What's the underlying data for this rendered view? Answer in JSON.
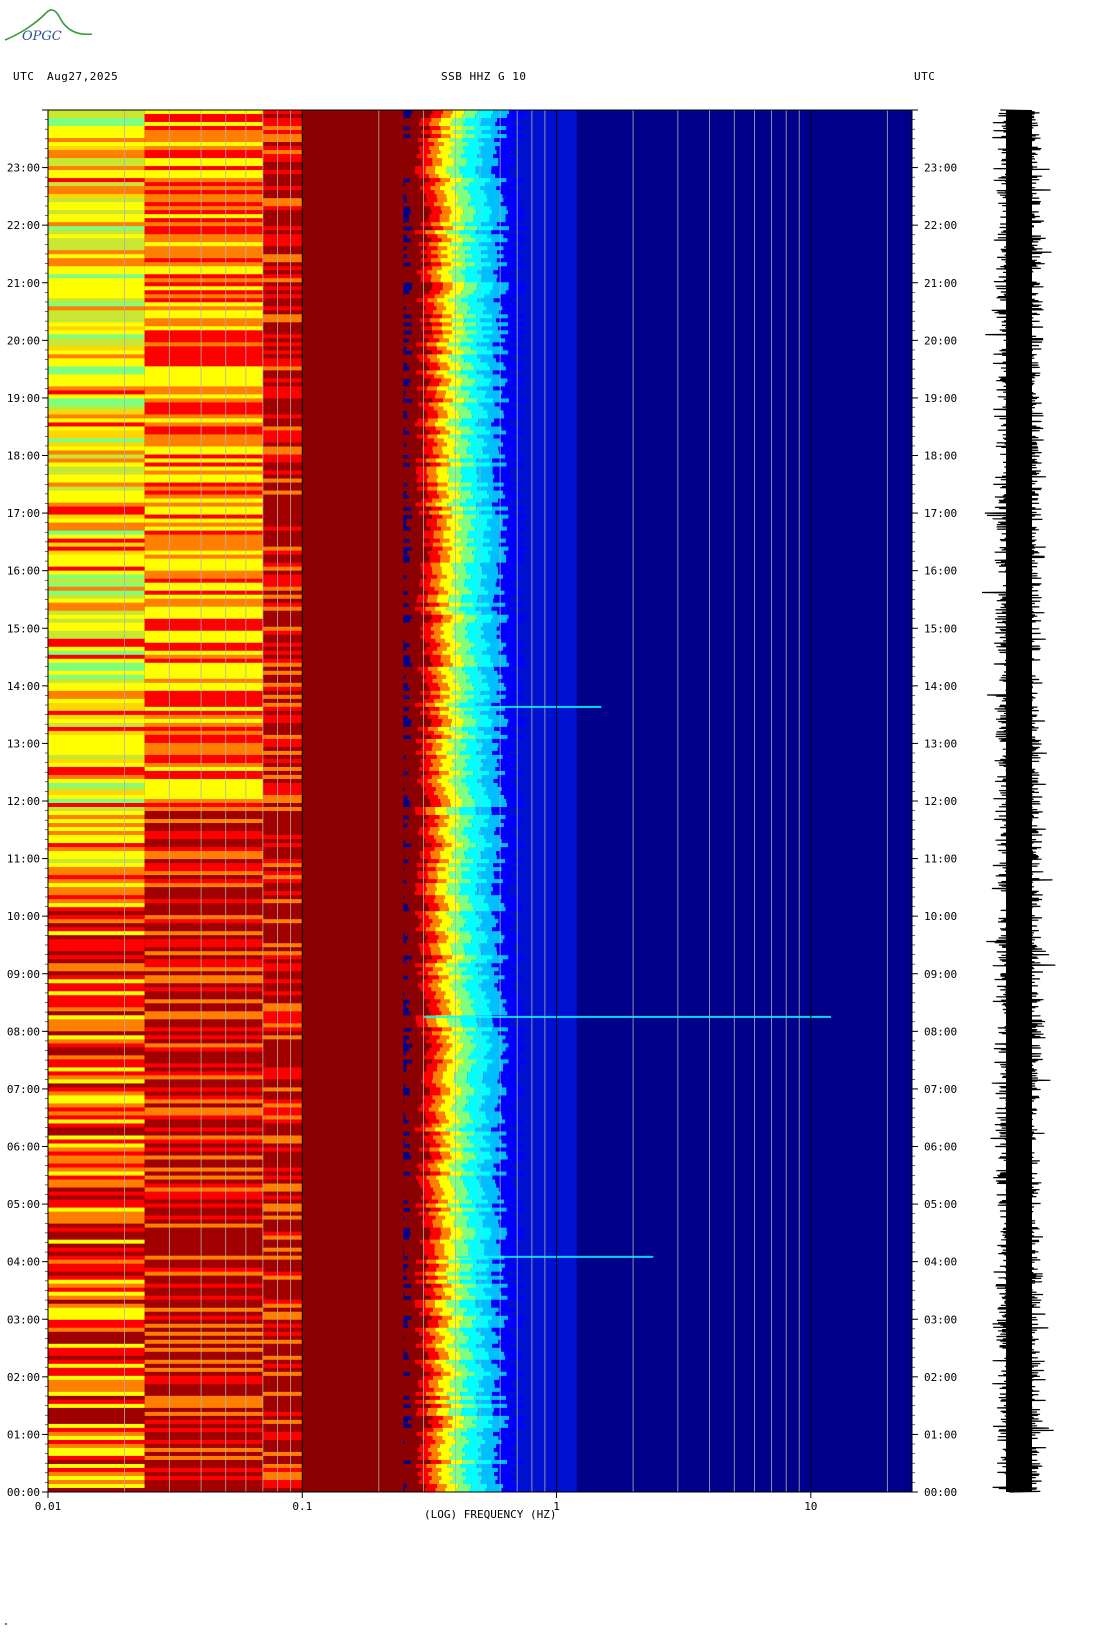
{
  "logo": {
    "text": "OPGC",
    "icon": "opgc-logo-icon"
  },
  "header": {
    "left_tz": "UTC",
    "date": "Aug27,2025",
    "station": "SSB HHZ G 10",
    "right_tz": "UTC"
  },
  "chart_data": {
    "type": "heatmap",
    "title": "SSB HHZ G 10",
    "subtitle": "Aug27,2025",
    "xlabel": "(LOG) FREQUENCY (HZ)",
    "ylabel": "UTC",
    "x_scale": "log",
    "xlim": [
      0.01,
      25
    ],
    "x_ticks": [
      "0.01",
      "0.1",
      "1",
      "10"
    ],
    "x_tick_values": [
      0.01,
      0.1,
      1,
      10
    ],
    "ylim_hours": [
      0,
      24
    ],
    "y_ticks": [
      "00:00",
      "01:00",
      "02:00",
      "03:00",
      "04:00",
      "05:00",
      "06:00",
      "07:00",
      "08:00",
      "09:00",
      "10:00",
      "11:00",
      "12:00",
      "13:00",
      "14:00",
      "15:00",
      "16:00",
      "17:00",
      "18:00",
      "19:00",
      "20:00",
      "21:00",
      "22:00",
      "23:00"
    ],
    "colormap": [
      "#00008b",
      "#0000ff",
      "#00bfff",
      "#00ffff",
      "#7fff7f",
      "#ffff00",
      "#ff7f00",
      "#ff0000",
      "#8b0000"
    ],
    "frequency_bands": [
      {
        "f_start": 0.01,
        "f_end": 0.024,
        "level": "high-variable"
      },
      {
        "f_start": 0.024,
        "f_end": 0.07,
        "level": "medium-high"
      },
      {
        "f_start": 0.07,
        "f_end": 0.1,
        "level": "medium"
      },
      {
        "f_start": 0.1,
        "f_end": 0.25,
        "level": "saturated-dark-red"
      },
      {
        "f_start": 0.25,
        "f_end": 0.7,
        "level": "transition"
      },
      {
        "f_start": 0.7,
        "f_end": 25,
        "level": "low-blue"
      }
    ],
    "events": [
      {
        "time": "13:38",
        "f_start": 0.4,
        "f_end": 1.5
      },
      {
        "time": "04:05",
        "f_start": 0.4,
        "f_end": 2.4
      },
      {
        "time": "08:15",
        "f_start": 0.3,
        "f_end": 12
      }
    ],
    "seismogram": {
      "label": "HHZ trace",
      "ylim_hours": [
        0,
        24
      ]
    }
  }
}
